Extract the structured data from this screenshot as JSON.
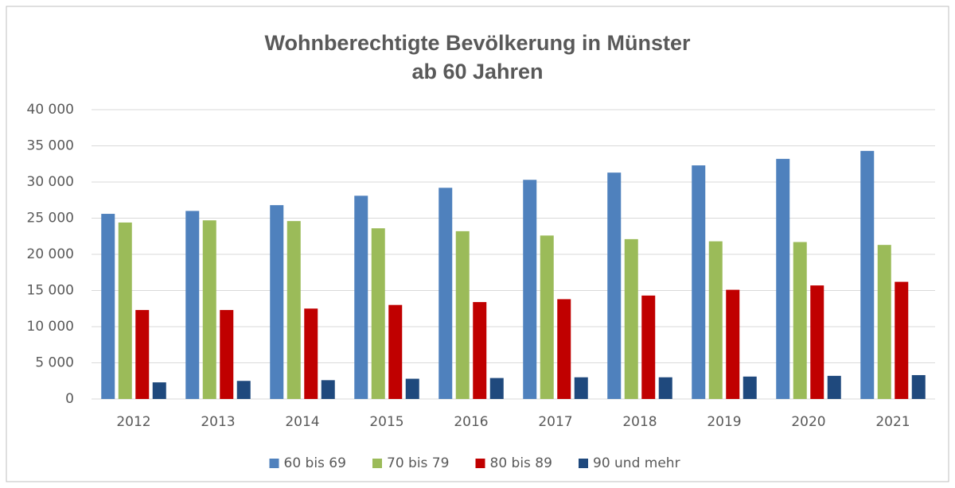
{
  "chart_data": {
    "type": "bar",
    "title": [
      "Wohnberechtigte Bevölkerung in Münster",
      "ab 60 Jahren"
    ],
    "categories": [
      "2012",
      "2013",
      "2014",
      "2015",
      "2016",
      "2017",
      "2018",
      "2019",
      "2020",
      "2021"
    ],
    "series": [
      {
        "name": "60 bis 69",
        "color": "#4f81bd",
        "values": [
          25600,
          26000,
          26800,
          28100,
          29200,
          30300,
          31300,
          32300,
          33200,
          34300
        ]
      },
      {
        "name": "70 bis 79",
        "color": "#9bbb59",
        "values": [
          24400,
          24700,
          24600,
          23600,
          23200,
          22600,
          22100,
          21800,
          21700,
          21300
        ]
      },
      {
        "name": "80 bis 89",
        "color": "#c00000",
        "values": [
          12300,
          12300,
          12500,
          13000,
          13400,
          13800,
          14300,
          15100,
          15700,
          16200
        ]
      },
      {
        "name": "90 und mehr",
        "color": "#1f497d",
        "values": [
          2300,
          2500,
          2600,
          2800,
          2900,
          3000,
          3000,
          3100,
          3200,
          3300
        ]
      }
    ],
    "ylim": [
      0,
      40000
    ],
    "yticks": [
      0,
      {
        "value": 5000,
        "label": "5 000"
      },
      {
        "value": 10000,
        "label": "10 000"
      },
      {
        "value": 15000,
        "label": "15 000"
      },
      {
        "value": 20000,
        "label": "20 000"
      },
      {
        "value": 25000,
        "label": "25 000"
      },
      {
        "value": 30000,
        "label": "30 000"
      },
      {
        "value": 35000,
        "label": "35 000"
      },
      {
        "value": 40000,
        "label": "40 000"
      }
    ],
    "grid": true,
    "legend": "bottom"
  }
}
